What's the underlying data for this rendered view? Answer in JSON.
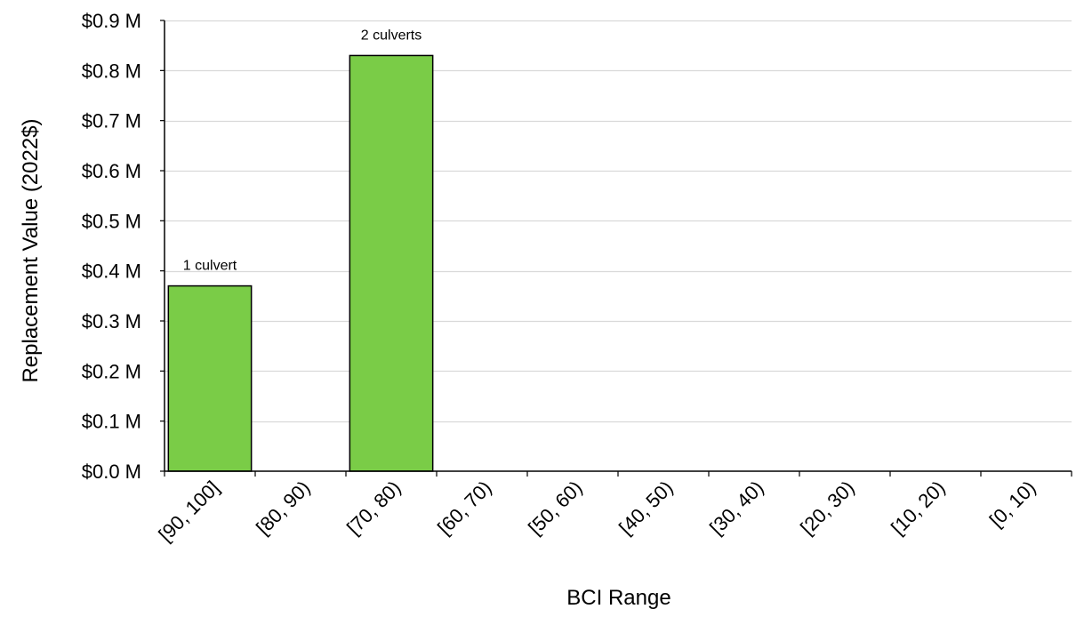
{
  "chart_data": {
    "type": "bar",
    "title": "",
    "xlabel": "BCI Range",
    "ylabel": "Replacement Value (2022$)",
    "categories": [
      "[90, 100]",
      "[80, 90)",
      "[70, 80)",
      "[60, 70)",
      "[50, 60)",
      "[40, 50)",
      "[30, 40)",
      "[20, 30)",
      "[10, 20)",
      "[0, 10)"
    ],
    "values": [
      0.37,
      0,
      0.83,
      0,
      0,
      0,
      0,
      0,
      0,
      0
    ],
    "data_labels": [
      "1 culvert",
      "",
      "2 culverts",
      "",
      "",
      "",
      "",
      "",
      "",
      ""
    ],
    "ylim": [
      0,
      0.9
    ],
    "yticks": [
      0,
      0.1,
      0.2,
      0.3,
      0.4,
      0.5,
      0.6,
      0.7,
      0.8,
      0.9
    ],
    "ytick_labels": [
      "$0.0 M",
      "$0.1 M",
      "$0.2 M",
      "$0.3 M",
      "$0.4 M",
      "$0.5 M",
      "$0.6 M",
      "$0.7 M",
      "$0.8 M",
      "$0.9 M"
    ],
    "grid": true,
    "legend": "none",
    "colors": {
      "bar": "#7acc47",
      "bar_edge": "#000000",
      "grid": "#d9d9d9",
      "axis": "#000000"
    }
  }
}
